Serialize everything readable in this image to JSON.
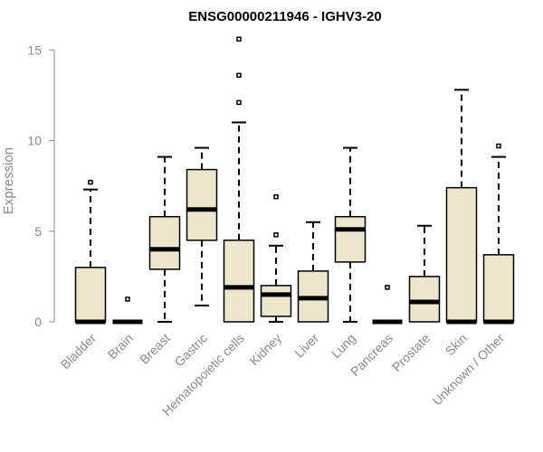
{
  "chart_data": {
    "type": "box",
    "title": "ENSG00000211946 - IGHV3-20",
    "ylabel": "Expression",
    "xlabel": "",
    "ylim": [
      0,
      15.6
    ],
    "yticks": [
      0,
      5,
      10,
      15
    ],
    "box_fill": "#ede6cb",
    "categories": [
      "Bladder",
      "Brain",
      "Breast",
      "Gastric",
      "Hematopoietic cells",
      "Kidney",
      "Liver",
      "Lung",
      "Pancreas",
      "Prostate",
      "Skin",
      "Unknown / Other"
    ],
    "boxes": [
      {
        "low": 0,
        "q1": 0,
        "median": 0,
        "q3": 3.0,
        "high": 7.3,
        "outliers": [
          7.7
        ]
      },
      {
        "low": 0,
        "q1": 0,
        "median": 0,
        "q3": 0,
        "high": 0,
        "outliers": [
          1.25
        ]
      },
      {
        "low": 0,
        "q1": 2.9,
        "median": 4.0,
        "q3": 5.8,
        "high": 9.1,
        "outliers": []
      },
      {
        "low": 0.9,
        "q1": 4.5,
        "median": 6.2,
        "q3": 8.4,
        "high": 9.6,
        "outliers": []
      },
      {
        "low": 0,
        "q1": 0,
        "median": 1.9,
        "q3": 4.5,
        "high": 11.0,
        "outliers": [
          12.1,
          13.6,
          15.6
        ]
      },
      {
        "low": 0,
        "q1": 0.3,
        "median": 1.5,
        "q3": 2.0,
        "high": 4.2,
        "outliers": [
          4.8,
          6.9
        ]
      },
      {
        "low": 0,
        "q1": 0,
        "median": 1.3,
        "q3": 2.8,
        "high": 5.5,
        "outliers": []
      },
      {
        "low": 0,
        "q1": 3.3,
        "median": 5.1,
        "q3": 5.8,
        "high": 9.6,
        "outliers": []
      },
      {
        "low": 0,
        "q1": 0,
        "median": 0,
        "q3": 0,
        "high": 0,
        "outliers": [
          1.9
        ]
      },
      {
        "low": 0,
        "q1": 0,
        "median": 1.1,
        "q3": 2.5,
        "high": 5.3,
        "outliers": []
      },
      {
        "low": 0,
        "q1": 0,
        "median": 0,
        "q3": 7.4,
        "high": 12.8,
        "outliers": []
      },
      {
        "low": 0,
        "q1": 0,
        "median": 0,
        "q3": 3.7,
        "high": 9.1,
        "outliers": [
          9.7
        ]
      }
    ]
  }
}
